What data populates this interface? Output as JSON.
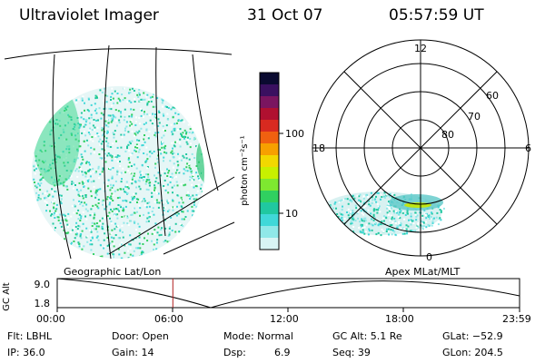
{
  "header": {
    "title": "Ultraviolet Imager",
    "date": "31 Oct 07",
    "time": "05:57:59 UT"
  },
  "colorbar": {
    "unit_label": "photon cm⁻²s⁻¹",
    "tick_labels": [
      "100",
      "10"
    ],
    "colors_top_to_bottom": [
      "#0a0a30",
      "#3a1060",
      "#7a1560",
      "#b01030",
      "#d82a20",
      "#f06010",
      "#f7a000",
      "#f2d800",
      "#c8f000",
      "#7ee830",
      "#30d060",
      "#20c8a0",
      "#40d8d8",
      "#90e8e8",
      "#d8f4f4"
    ]
  },
  "geo_map": {
    "label": "Geographic Lat/Lon"
  },
  "polar_plot": {
    "label": "Apex MLat/MLT",
    "mlt_labels": {
      "top": "12",
      "left": "18",
      "right": "6",
      "bottom": "0"
    },
    "lat_labels": [
      "60",
      "70",
      "80"
    ]
  },
  "altitude_plot": {
    "ylabel": "GC Alt",
    "y_ticks": [
      "9.0",
      "1.8"
    ],
    "x_ticks": [
      "00:00",
      "06:00",
      "12:00",
      "18:00",
      "23:59"
    ],
    "current_time_marker_hours": 6.0
  },
  "status": {
    "flt": "Flt: LBHL",
    "ip": "IP: 36.0",
    "door": "Door: Open",
    "gain": "Gain: 14",
    "mode": "Mode: Normal",
    "dsp": "Dsp:",
    "dsp_value": "6.9",
    "gc_alt": "GC Alt: 5.1 Re",
    "seq": "Seq: 39",
    "glat": "GLat: −52.9",
    "glon": "GLon: 204.5"
  }
}
